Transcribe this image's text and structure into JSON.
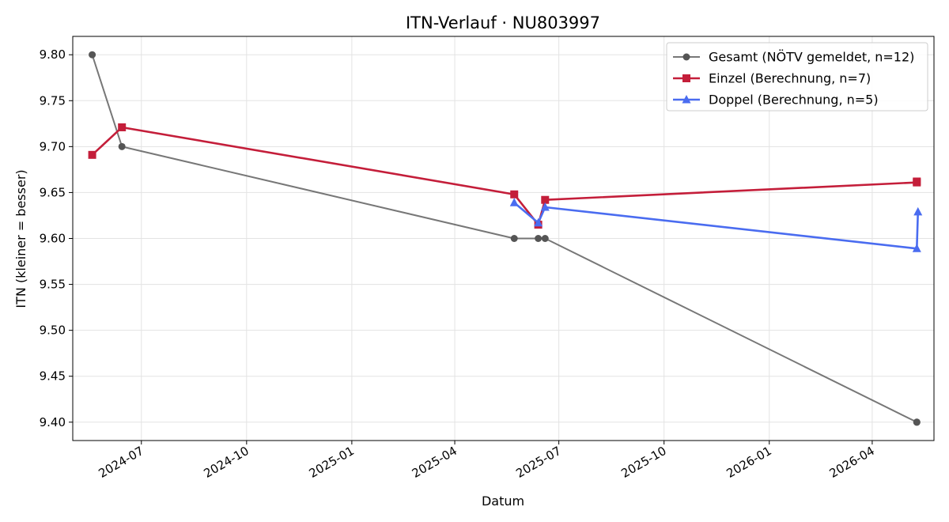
{
  "chart_data": {
    "type": "line",
    "title": "ITN-Verlauf · NU803997",
    "xlabel": "Datum",
    "ylabel": "ITN  (kleiner = besser)",
    "xlim": [
      "2024-05-02",
      "2026-05-25"
    ],
    "ylim": [
      9.38,
      9.82
    ],
    "yticks": [
      9.4,
      9.45,
      9.5,
      9.55,
      9.6,
      9.65,
      9.7,
      9.75,
      9.8
    ],
    "ytick_labels": [
      "9.40",
      "9.45",
      "9.50",
      "9.55",
      "9.60",
      "9.65",
      "9.70",
      "9.75",
      "9.80"
    ],
    "xticks": [
      "2024-07-01",
      "2024-10-01",
      "2025-01-01",
      "2025-04-01",
      "2025-07-01",
      "2025-10-01",
      "2026-01-01",
      "2026-04-01"
    ],
    "xtick_labels": [
      "2024-07",
      "2024-10",
      "2025-01",
      "2025-04",
      "2025-07",
      "2025-10",
      "2026-01",
      "2026-04"
    ],
    "grid": true,
    "legend_position": "top-right",
    "series": [
      {
        "name": "Gesamt (NÖTV gemeldet, n=12)",
        "color": "#555555",
        "marker": "circle",
        "points": [
          {
            "x": "2024-05-19",
            "y": 9.8
          },
          {
            "x": "2024-06-14",
            "y": 9.7
          },
          {
            "x": "2025-05-23",
            "y": 9.6
          },
          {
            "x": "2025-06-13",
            "y": 9.6
          },
          {
            "x": "2025-06-19",
            "y": 9.6
          },
          {
            "x": "2026-05-10",
            "y": 9.4
          },
          {
            "x": "2026-05-10",
            "y": 9.4
          }
        ]
      },
      {
        "name": "Einzel (Berechnung, n=7)",
        "color": "#c41e3a",
        "marker": "square",
        "points": [
          {
            "x": "2024-05-19",
            "y": 9.691
          },
          {
            "x": "2024-06-14",
            "y": 9.721
          },
          {
            "x": "2025-05-23",
            "y": 9.648
          },
          {
            "x": "2025-06-13",
            "y": 9.615
          },
          {
            "x": "2025-06-19",
            "y": 9.642
          },
          {
            "x": "2026-05-10",
            "y": 9.661
          },
          {
            "x": "2026-05-10",
            "y": 9.662
          }
        ]
      },
      {
        "name": "Doppel (Berechnung, n=5)",
        "color": "#4a6cf0",
        "marker": "triangle",
        "points": [
          {
            "x": "2025-05-23",
            "y": 9.639
          },
          {
            "x": "2025-06-13",
            "y": 9.617
          },
          {
            "x": "2025-06-19",
            "y": 9.634
          },
          {
            "x": "2026-05-10",
            "y": 9.589
          },
          {
            "x": "2026-05-11",
            "y": 9.629
          }
        ]
      }
    ]
  }
}
